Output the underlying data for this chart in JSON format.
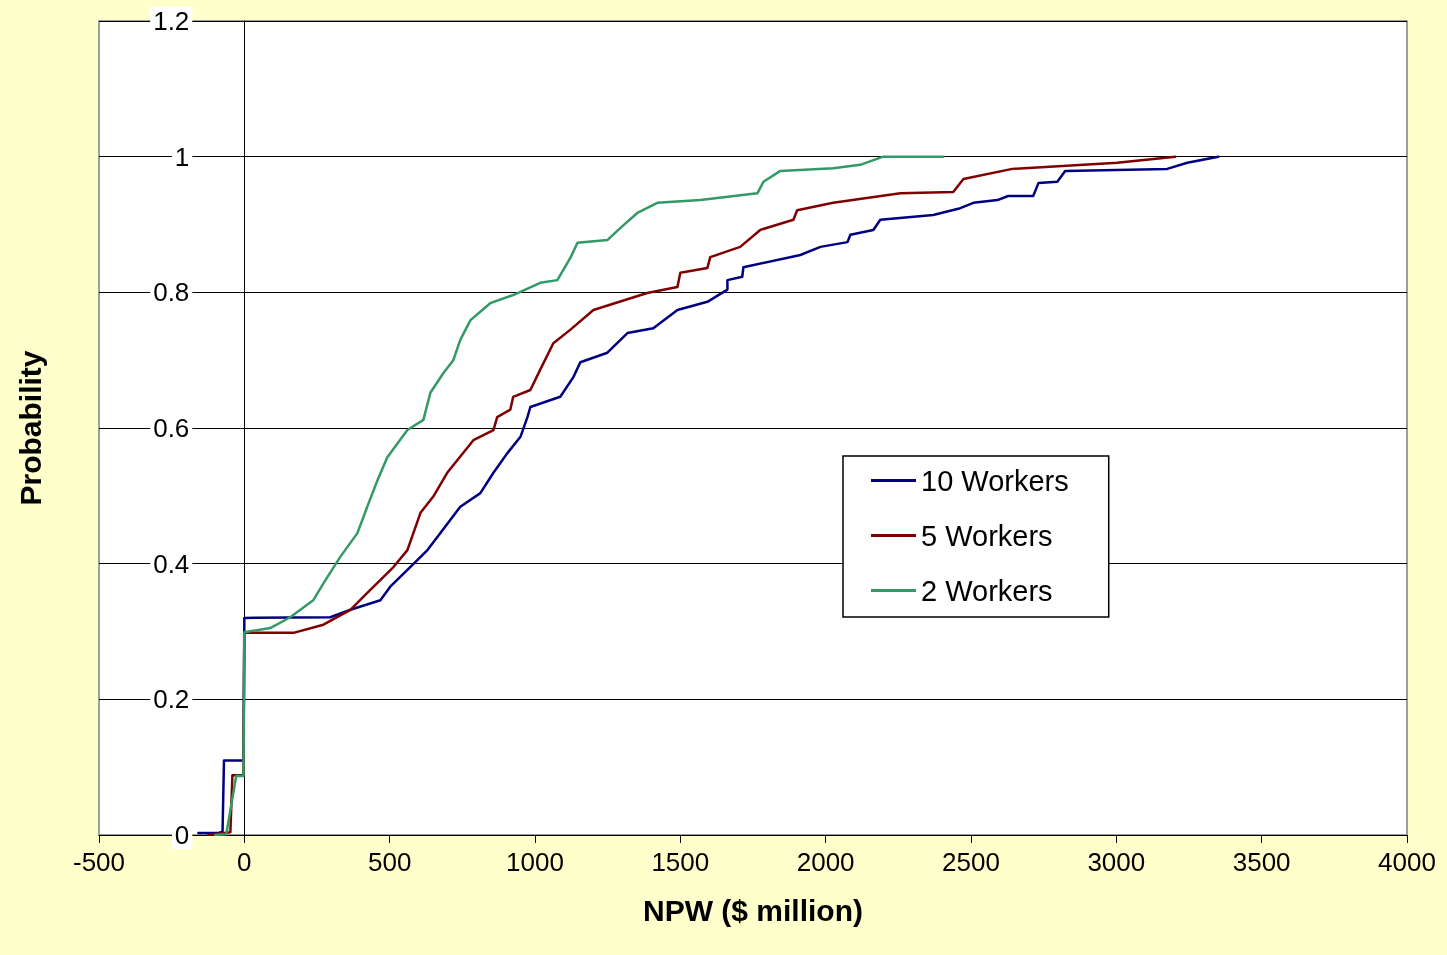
{
  "chart_data": {
    "type": "line",
    "xlabel": "NPW ($ million)",
    "ylabel": "Probability",
    "xlim": [
      -500,
      4000
    ],
    "xticks": [
      -500,
      0,
      500,
      1000,
      1500,
      2000,
      2500,
      3000,
      3500,
      4000
    ],
    "ylim": [
      0,
      1.2
    ],
    "yticks": [
      0,
      0.2,
      0.4,
      0.6,
      0.8,
      1,
      1.2
    ],
    "grid": "y",
    "legend": "right",
    "marker": "none",
    "line_style": "solid",
    "series": [
      {
        "name": "10 Workers",
        "color": "#000080",
        "x": [
          -158,
          -89,
          -75,
          -70,
          -3,
          0,
          296,
          365,
          468,
          502,
          561,
          630,
          674,
          743,
          812,
          857,
          905,
          950,
          974,
          984,
          1087,
          1132,
          1156,
          1249,
          1318,
          1407,
          1490,
          1593,
          1662,
          1662,
          1713,
          1717,
          1913,
          1982,
          2075,
          2085,
          2164,
          2188,
          2370,
          2463,
          2508,
          2591,
          2628,
          2714,
          2732,
          2797,
          2824,
          3175,
          3244,
          3351
        ],
        "values": [
          0.003,
          0.003,
          0.005,
          0.11,
          0.11,
          0.32,
          0.321,
          0.332,
          0.346,
          0.366,
          0.391,
          0.42,
          0.445,
          0.484,
          0.504,
          0.534,
          0.563,
          0.587,
          0.616,
          0.631,
          0.646,
          0.675,
          0.697,
          0.711,
          0.74,
          0.747,
          0.774,
          0.786,
          0.804,
          0.818,
          0.823,
          0.837,
          0.855,
          0.867,
          0.874,
          0.885,
          0.892,
          0.907,
          0.914,
          0.924,
          0.932,
          0.936,
          0.942,
          0.942,
          0.961,
          0.963,
          0.979,
          0.982,
          0.991,
          1.0
        ]
      },
      {
        "name": "5 Workers",
        "color": "#800000",
        "x": [
          -124,
          -48,
          -41,
          -3,
          0,
          31,
          169,
          272,
          365,
          423,
          513,
          561,
          606,
          650,
          698,
          788,
          857,
          870,
          915,
          925,
          984,
          1018,
          1063,
          1122,
          1201,
          1386,
          1490,
          1500,
          1593,
          1603,
          1706,
          1775,
          1889,
          1902,
          2026,
          2257,
          2439,
          2474,
          2642,
          3003,
          3203
        ],
        "values": [
          0,
          0.004,
          0.088,
          0.088,
          0.298,
          0.298,
          0.298,
          0.31,
          0.332,
          0.357,
          0.395,
          0.42,
          0.475,
          0.499,
          0.534,
          0.582,
          0.597,
          0.616,
          0.627,
          0.646,
          0.656,
          0.686,
          0.725,
          0.745,
          0.774,
          0.799,
          0.808,
          0.829,
          0.836,
          0.852,
          0.867,
          0.892,
          0.907,
          0.921,
          0.932,
          0.946,
          0.948,
          0.967,
          0.982,
          0.991,
          1.0
        ]
      },
      {
        "name": "2 Workers",
        "color": "#339966",
        "x": [
          -100,
          -62,
          -28,
          -3,
          0,
          89,
          158,
          237,
          272,
          330,
          389,
          423,
          458,
          492,
          561,
          616,
          640,
          685,
          719,
          743,
          778,
          846,
          925,
          1018,
          1077,
          1122,
          1146,
          1249,
          1294,
          1352,
          1421,
          1569,
          1765,
          1786,
          1844,
          2026,
          2119,
          2198,
          2405
        ],
        "values": [
          0,
          0.001,
          0.087,
          0.087,
          0.299,
          0.305,
          0.321,
          0.346,
          0.371,
          0.41,
          0.445,
          0.484,
          0.523,
          0.557,
          0.597,
          0.612,
          0.652,
          0.681,
          0.7,
          0.73,
          0.759,
          0.784,
          0.796,
          0.814,
          0.818,
          0.851,
          0.873,
          0.877,
          0.895,
          0.917,
          0.932,
          0.936,
          0.946,
          0.963,
          0.979,
          0.983,
          0.988,
          1.0,
          1.0
        ]
      }
    ]
  }
}
